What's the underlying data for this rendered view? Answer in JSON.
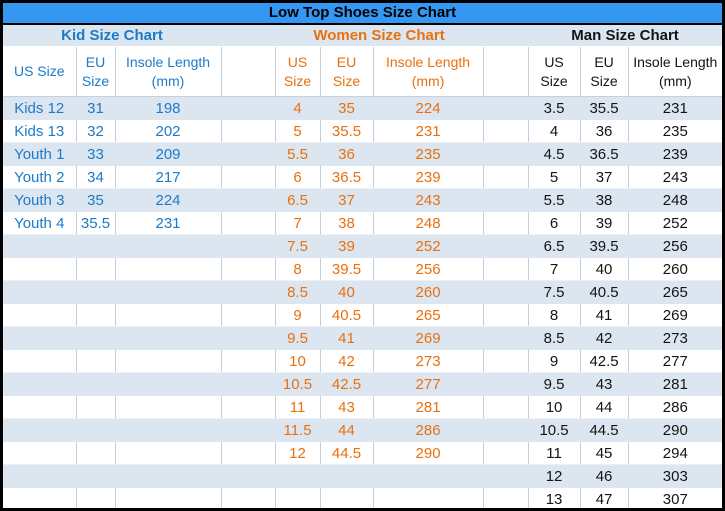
{
  "colors": {
    "title_bg": "#3498F3",
    "stripe": "#DCE6F1",
    "kid_text": "#1E7AC6",
    "women_text": "#E8700F",
    "man_text": "#141414",
    "grid_line": "#C6CFDA",
    "outer_border": "#000000"
  },
  "chart_data": {
    "type": "table",
    "title": "Low Top Shoes Size Chart",
    "row_count": 18,
    "sections": [
      {
        "id": "kid",
        "label": "Kid Size Chart",
        "header_lines": [
          [
            "US Size"
          ],
          [
            "EU",
            "Size"
          ],
          [
            "Insole Length",
            "(mm)"
          ]
        ],
        "rows": [
          [
            "Kids 12",
            "31",
            "198"
          ],
          [
            "Kids 13",
            "32",
            "202"
          ],
          [
            "Youth 1",
            "33",
            "209"
          ],
          [
            "Youth 2",
            "34",
            "217"
          ],
          [
            "Youth 3",
            "35",
            "224"
          ],
          [
            "Youth 4",
            "35.5",
            "231"
          ]
        ]
      },
      {
        "id": "women",
        "label": "Women Size Chart",
        "header_lines": [
          [
            "US",
            "Size"
          ],
          [
            "EU",
            "Size"
          ],
          [
            "Insole Length",
            "(mm)"
          ]
        ],
        "rows": [
          [
            "4",
            "35",
            "224"
          ],
          [
            "5",
            "35.5",
            "231"
          ],
          [
            "5.5",
            "36",
            "235"
          ],
          [
            "6",
            "36.5",
            "239"
          ],
          [
            "6.5",
            "37",
            "243"
          ],
          [
            "7",
            "38",
            "248"
          ],
          [
            "7.5",
            "39",
            "252"
          ],
          [
            "8",
            "39.5",
            "256"
          ],
          [
            "8.5",
            "40",
            "260"
          ],
          [
            "9",
            "40.5",
            "265"
          ],
          [
            "9.5",
            "41",
            "269"
          ],
          [
            "10",
            "42",
            "273"
          ],
          [
            "10.5",
            "42.5",
            "277"
          ],
          [
            "11",
            "43",
            "281"
          ],
          [
            "11.5",
            "44",
            "286"
          ],
          [
            "12",
            "44.5",
            "290"
          ]
        ]
      },
      {
        "id": "man",
        "label": "Man Size Chart",
        "header_lines": [
          [
            "US",
            "Size"
          ],
          [
            "EU",
            "Size"
          ],
          [
            "Insole Length",
            "(mm)"
          ]
        ],
        "rows": [
          [
            "3.5",
            "35.5",
            "231"
          ],
          [
            "4",
            "36",
            "235"
          ],
          [
            "4.5",
            "36.5",
            "239"
          ],
          [
            "5",
            "37",
            "243"
          ],
          [
            "5.5",
            "38",
            "248"
          ],
          [
            "6",
            "39",
            "252"
          ],
          [
            "6.5",
            "39.5",
            "256"
          ],
          [
            "7",
            "40",
            "260"
          ],
          [
            "7.5",
            "40.5",
            "265"
          ],
          [
            "8",
            "41",
            "269"
          ],
          [
            "8.5",
            "42",
            "273"
          ],
          [
            "9",
            "42.5",
            "277"
          ],
          [
            "9.5",
            "43",
            "281"
          ],
          [
            "10",
            "44",
            "286"
          ],
          [
            "10.5",
            "44.5",
            "290"
          ],
          [
            "11",
            "45",
            "294"
          ],
          [
            "12",
            "46",
            "303"
          ],
          [
            "13",
            "47",
            "307"
          ]
        ]
      }
    ]
  }
}
